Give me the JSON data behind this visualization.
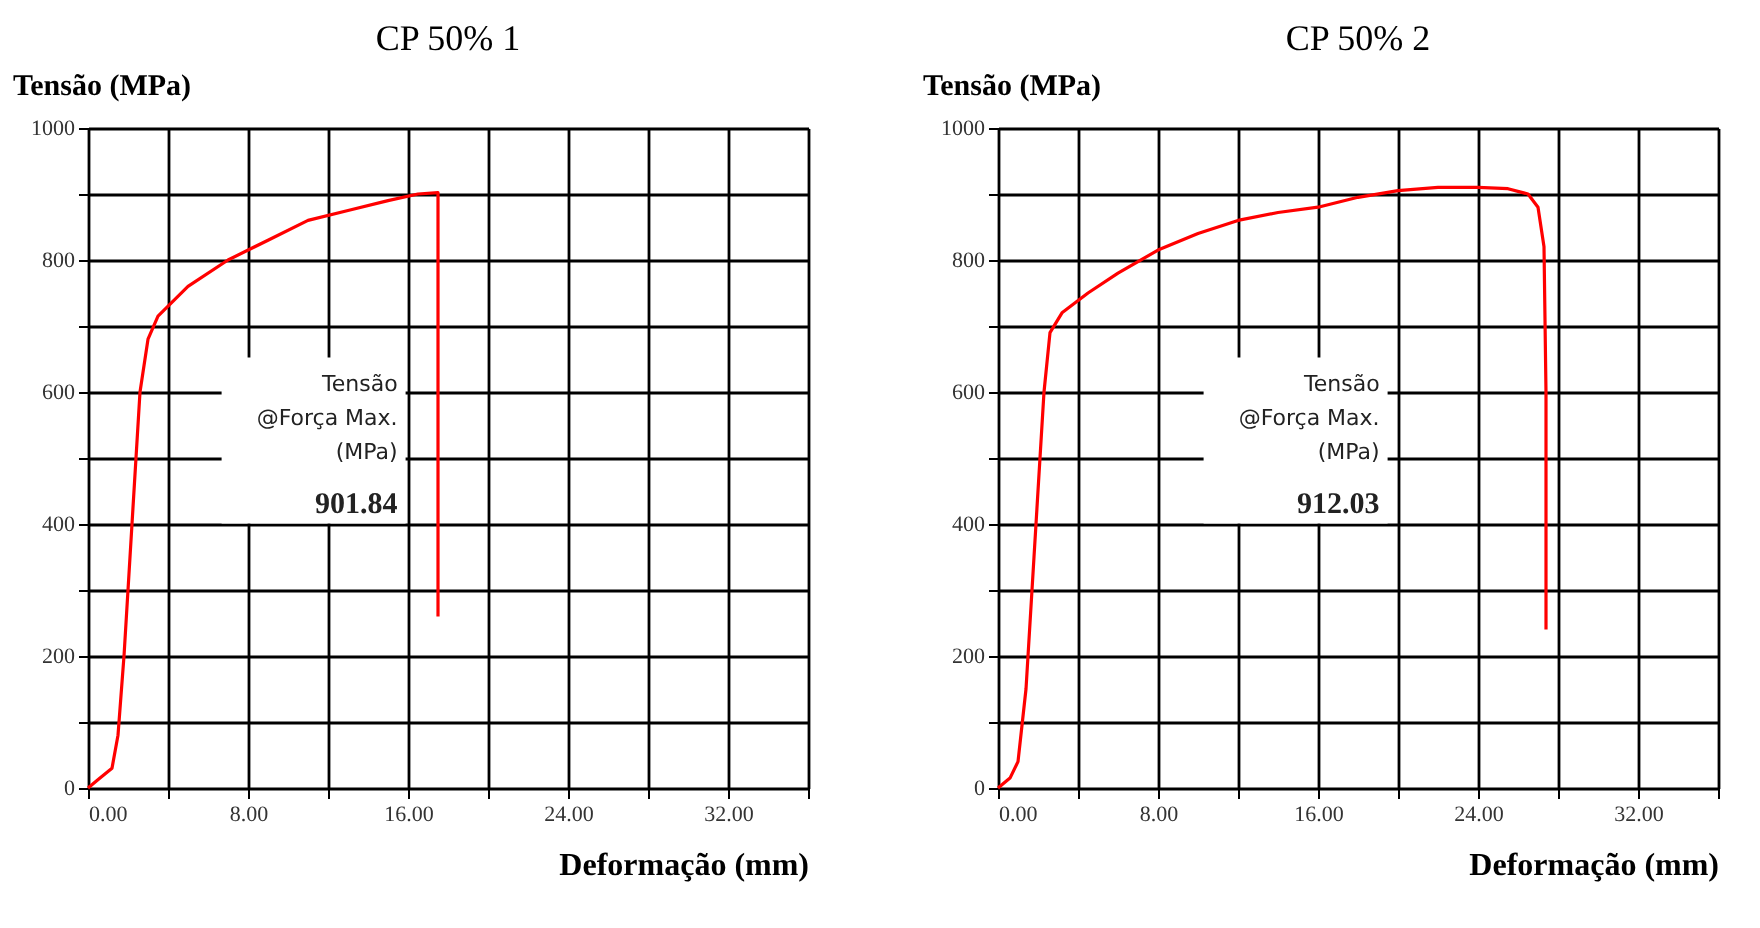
{
  "chart_data": [
    {
      "type": "line",
      "title": "CP 50% 1",
      "xlabel": "Deformação (mm)",
      "ylabel": "Tensão (MPa)",
      "annotations": [
        "Tensão",
        "@Força Max.",
        "(MPa)",
        "901.84"
      ],
      "x": [
        0,
        0.6,
        1.2,
        1.5,
        1.8,
        2.2,
        2.6,
        3.0,
        3.5,
        5,
        7,
        9,
        11,
        13,
        15,
        16.5,
        17.5,
        17.5
      ],
      "series": [
        {
          "color": "#ff0000",
          "values": [
            0,
            15,
            30,
            80,
            200,
            400,
            600,
            680,
            715,
            760,
            800,
            830,
            860,
            875,
            890,
            900,
            902,
            260
          ]
        }
      ],
      "xlim": [
        0,
        36
      ],
      "ylim": [
        0,
        1000
      ],
      "xticks": [
        {
          "value": 0,
          "label": "0.00"
        },
        {
          "value": 4,
          "label": null
        },
        {
          "value": 8,
          "label": "8.00"
        },
        {
          "value": 12,
          "label": null
        },
        {
          "value": 16,
          "label": "16.00"
        },
        {
          "value": 20,
          "label": null
        },
        {
          "value": 24,
          "label": "24.00"
        },
        {
          "value": 28,
          "label": null
        },
        {
          "value": 32,
          "label": "32.00"
        },
        {
          "value": 36,
          "label": null
        }
      ],
      "yticks": [
        0,
        {
          "value": 100,
          "label": null
        },
        200,
        {
          "value": 300,
          "label": null
        },
        400,
        {
          "value": 500,
          "label": null
        },
        600,
        {
          "value": 700,
          "label": null
        },
        800,
        {
          "value": 900,
          "label": null
        },
        1000
      ],
      "grid": true,
      "legend": false,
      "marker": "none",
      "line_style": "solid"
    },
    {
      "type": "line",
      "title": "CP 50% 2",
      "xlabel": "Deformação (mm)",
      "ylabel": "Tensão (MPa)",
      "annotations": [
        "Tensão",
        "@Força Max.",
        "(MPa)",
        "912.03"
      ],
      "x": [
        0,
        0.6,
        1.0,
        1.4,
        1.8,
        2.3,
        2.6,
        3.2,
        4.5,
        6,
        8,
        10,
        12,
        14,
        16,
        18,
        20,
        22,
        24,
        25.5,
        26.5,
        27,
        27.3,
        27.4,
        27.4
      ],
      "series": [
        {
          "color": "#ff0000",
          "values": [
            0,
            15,
            40,
            150,
            350,
            600,
            690,
            720,
            750,
            780,
            815,
            840,
            860,
            872,
            880,
            895,
            905,
            910,
            910,
            908,
            900,
            880,
            820,
            600,
            240
          ]
        }
      ],
      "xlim": [
        0,
        36
      ],
      "ylim": [
        0,
        1000
      ],
      "xticks": [
        {
          "value": 0,
          "label": "0.00"
        },
        {
          "value": 4,
          "label": null
        },
        {
          "value": 8,
          "label": "8.00"
        },
        {
          "value": 12,
          "label": null
        },
        {
          "value": 16,
          "label": "16.00"
        },
        {
          "value": 20,
          "label": null
        },
        {
          "value": 24,
          "label": "24.00"
        },
        {
          "value": 28,
          "label": null
        },
        {
          "value": 32,
          "label": "32.00"
        },
        {
          "value": 36,
          "label": null
        }
      ],
      "yticks": [
        0,
        {
          "value": 100,
          "label": null
        },
        200,
        {
          "value": 300,
          "label": null
        },
        400,
        {
          "value": 500,
          "label": null
        },
        600,
        {
          "value": 700,
          "label": null
        },
        800,
        {
          "value": 900,
          "label": null
        },
        1000
      ],
      "grid": true,
      "legend": false,
      "marker": "none",
      "line_style": "solid"
    }
  ]
}
